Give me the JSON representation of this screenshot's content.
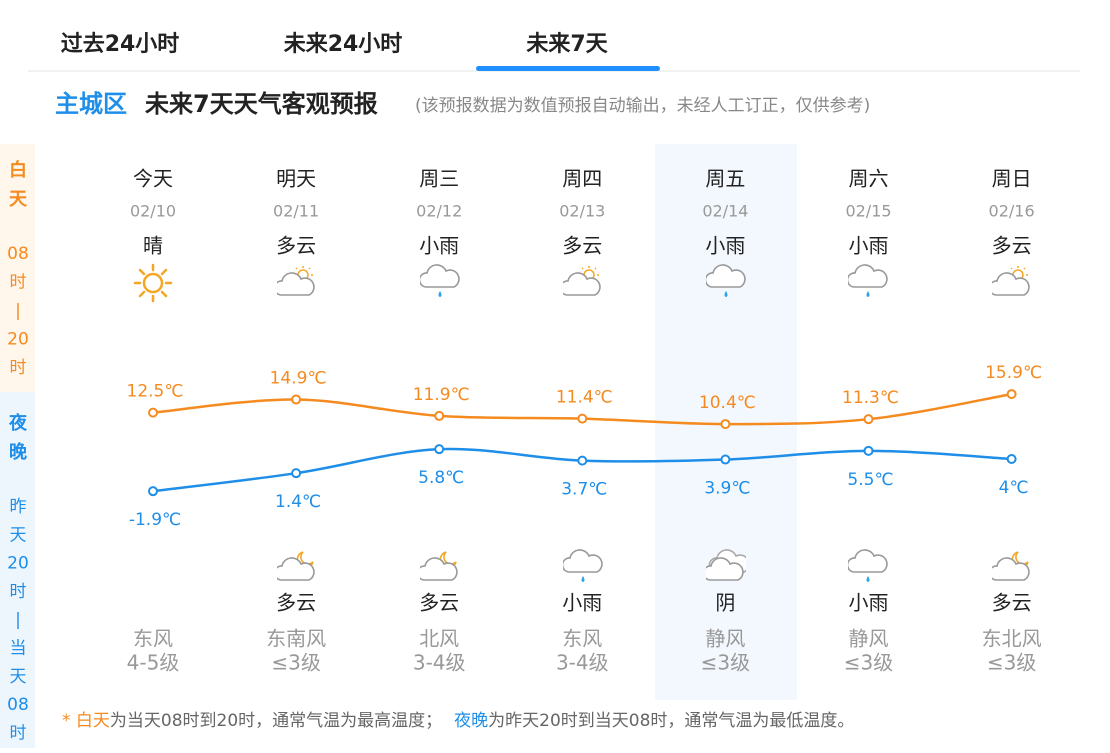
{
  "tabs": [
    "过去24小时",
    "未来24小时",
    "未来7天"
  ],
  "heading": {
    "location": "主城区",
    "title": "未来7天天气客观预报",
    "note": "(该预报数据为数值预报自动输出，未经人工订正，仅供参考)"
  },
  "side": {
    "day_label": [
      "白",
      "天"
    ],
    "day_time": [
      "08",
      "时",
      "|",
      "20",
      "时"
    ],
    "night_label": [
      "夜",
      "晚"
    ],
    "night_time": [
      "昨",
      "天",
      "20",
      "时",
      "|",
      "当",
      "天",
      "08",
      "时"
    ]
  },
  "days": [
    {
      "week": "今天",
      "date": "02/10",
      "day_weather": "晴",
      "night_weather": null,
      "wind_dir": "东风",
      "wind_level": "4-5级"
    },
    {
      "week": "明天",
      "date": "02/11",
      "day_weather": "多云",
      "night_weather": "多云",
      "wind_dir": "东南风",
      "wind_level": "≤3级"
    },
    {
      "week": "周三",
      "date": "02/12",
      "day_weather": "小雨",
      "night_weather": "多云",
      "wind_dir": "北风",
      "wind_level": "3-4级"
    },
    {
      "week": "周四",
      "date": "02/13",
      "day_weather": "多云",
      "night_weather": "小雨",
      "wind_dir": "东风",
      "wind_level": "3-4级"
    },
    {
      "week": "周五",
      "date": "02/14",
      "day_weather": "小雨",
      "night_weather": "阴",
      "wind_dir": "静风",
      "wind_level": "≤3级"
    },
    {
      "week": "周六",
      "date": "02/15",
      "day_weather": "小雨",
      "night_weather": "小雨",
      "wind_dir": "静风",
      "wind_level": "≤3级"
    },
    {
      "week": "周日",
      "date": "02/16",
      "day_weather": "多云",
      "night_weather": "多云",
      "wind_dir": "东北风",
      "wind_level": "≤3级"
    }
  ],
  "chart_data": {
    "type": "line",
    "ylim": [
      -7,
      26
    ],
    "series": [
      {
        "color": "#f58a1f",
        "values": [
          12.5,
          14.9,
          11.9,
          11.4,
          10.4,
          11.3,
          15.9
        ],
        "value_labels": [
          "12.5℃",
          "14.9℃",
          "11.9℃",
          "11.4℃",
          "10.4℃",
          "11.3℃",
          "15.9℃"
        ]
      },
      {
        "color": "#1e8ee9",
        "values": [
          -1.9,
          1.4,
          5.8,
          3.7,
          3.9,
          5.5,
          4
        ],
        "value_labels": [
          "-1.9℃",
          "1.4℃",
          "5.8℃",
          "3.7℃",
          "3.9℃",
          "5.5℃",
          "4℃"
        ]
      }
    ]
  },
  "footer": [
    "* 白天",
    "为当天08时到20时，通常气温为最高温度；",
    "夜晚",
    "为昨天20时到当天08时，通常气温为最低温度。"
  ]
}
